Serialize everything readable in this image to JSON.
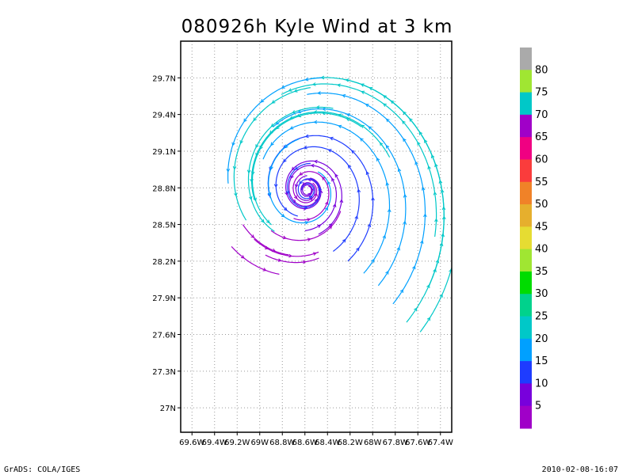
{
  "chart_data": {
    "type": "streamline",
    "title": "080926h Kyle Wind at 3 km",
    "x_ticks": [
      "69.6W",
      "69.4W",
      "69.2W",
      "69W",
      "68.8W",
      "68.6W",
      "68.4W",
      "68.2W",
      "68W",
      "67.8W",
      "67.6W",
      "67.4W"
    ],
    "x_tick_values": [
      -69.6,
      -69.4,
      -69.2,
      -69.0,
      -68.8,
      -68.6,
      -68.4,
      -68.2,
      -68.0,
      -67.8,
      -67.6,
      -67.4
    ],
    "y_ticks": [
      "29.7N",
      "29.4N",
      "29.1N",
      "28.8N",
      "28.5N",
      "28.2N",
      "27.9N",
      "27.6N",
      "27.3N",
      "27N"
    ],
    "y_tick_values": [
      29.7,
      29.4,
      29.1,
      28.8,
      28.5,
      28.2,
      27.9,
      27.6,
      27.3,
      27.0
    ],
    "xlim": [
      -69.7,
      -67.3
    ],
    "ylim": [
      26.8,
      30.0
    ],
    "grid": true,
    "center": {
      "lon": -68.58,
      "lat": 28.78
    },
    "colorbar": {
      "labels": [
        "5",
        "10",
        "15",
        "20",
        "25",
        "30",
        "35",
        "40",
        "45",
        "50",
        "55",
        "60",
        "65",
        "70",
        "75",
        "80"
      ],
      "colors": [
        "#a000c8",
        "#7800dc",
        "#1e3cff",
        "#00a0ff",
        "#00c8c8",
        "#00d28c",
        "#00dc00",
        "#a0e632",
        "#e6dc32",
        "#e6af2d",
        "#f08228",
        "#fa3c3c",
        "#f00082",
        "#a000c8",
        "#00c8c8",
        "#a0e632",
        "#aaaaaa"
      ]
    },
    "streamlines": [
      {
        "lon": -68.6,
        "lat": 28.45,
        "dir": 1,
        "steps": 140,
        "speed": 10
      },
      {
        "lon": -68.48,
        "lat": 28.42,
        "dir": 1,
        "steps": 150,
        "speed": 12
      },
      {
        "lon": -68.35,
        "lat": 28.28,
        "dir": 1,
        "steps": 165,
        "speed": 15
      },
      {
        "lon": -68.22,
        "lat": 28.2,
        "dir": 1,
        "steps": 175,
        "speed": 18
      },
      {
        "lon": -68.08,
        "lat": 28.1,
        "dir": 1,
        "steps": 185,
        "speed": 20
      },
      {
        "lon": -67.95,
        "lat": 28.0,
        "dir": 1,
        "steps": 195,
        "speed": 22
      },
      {
        "lon": -67.82,
        "lat": 27.85,
        "dir": 1,
        "steps": 200,
        "speed": 24
      },
      {
        "lon": -67.7,
        "lat": 27.7,
        "dir": 1,
        "steps": 205,
        "speed": 26
      },
      {
        "lon": -67.58,
        "lat": 27.62,
        "dir": 1,
        "steps": 210,
        "speed": 28
      },
      {
        "lon": -67.5,
        "lat": 28.0,
        "dir": 1,
        "steps": 200,
        "speed": 30
      },
      {
        "lon": -67.45,
        "lat": 28.4,
        "dir": 1,
        "steps": 180,
        "speed": 33
      },
      {
        "lon": -67.85,
        "lat": 29.05,
        "dir": 1,
        "steps": 150,
        "speed": 36
      },
      {
        "lon": -68.1,
        "lat": 29.3,
        "dir": 1,
        "steps": 140,
        "speed": 38
      },
      {
        "lon": -68.35,
        "lat": 29.45,
        "dir": 1,
        "steps": 130,
        "speed": 35
      },
      {
        "lon": -68.55,
        "lat": 29.62,
        "dir": 1,
        "steps": 120,
        "speed": 25
      },
      {
        "lon": -68.45,
        "lat": 29.7,
        "dir": 1,
        "steps": 110,
        "speed": 22
      },
      {
        "lon": -68.65,
        "lat": 29.2,
        "dir": 1,
        "steps": 130,
        "speed": 20
      },
      {
        "lon": -68.55,
        "lat": 29.0,
        "dir": 1,
        "steps": 120,
        "speed": 15
      },
      {
        "lon": -68.58,
        "lat": 28.9,
        "dir": 1,
        "steps": 90,
        "speed": 10
      },
      {
        "lon": -68.7,
        "lat": 28.55,
        "dir": 1,
        "steps": 110,
        "speed": 9
      },
      {
        "lon": -68.9,
        "lat": 28.45,
        "dir": 1,
        "steps": 60,
        "speed": 6
      },
      {
        "lon": -69.05,
        "lat": 28.38,
        "dir": 1,
        "steps": 50,
        "speed": 5
      },
      {
        "lon": -69.25,
        "lat": 28.32,
        "dir": 1,
        "steps": 40,
        "speed": 5
      },
      {
        "lon": -69.15,
        "lat": 28.5,
        "dir": 1,
        "steps": 40,
        "speed": 6
      },
      {
        "lon": -68.95,
        "lat": 28.25,
        "dir": 1,
        "steps": 40,
        "speed": 5
      }
    ]
  },
  "footer": {
    "left": "GrADS: COLA/IGES",
    "right": "2010-02-08-16:07"
  }
}
